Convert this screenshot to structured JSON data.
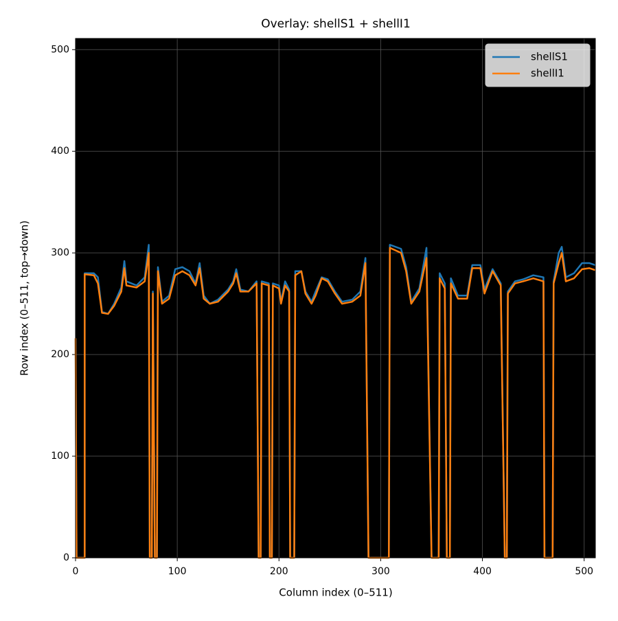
{
  "chart_data": {
    "type": "line",
    "title": "Overlay: shellS1 + shellI1",
    "x_label": "Column index (0–511)",
    "y_label": "Row index (0–511, top→down)",
    "x": [
      0,
      1,
      9,
      9,
      18,
      22,
      26,
      32,
      38,
      45,
      48,
      50,
      60,
      68,
      72,
      73,
      75,
      76,
      78,
      80,
      81,
      85,
      92,
      98,
      105,
      112,
      118,
      122,
      126,
      132,
      140,
      150,
      155,
      158,
      162,
      170,
      178,
      180,
      182,
      183,
      190,
      191,
      193,
      194,
      200,
      202,
      206,
      210,
      211,
      215,
      216,
      222,
      226,
      232,
      236,
      242,
      248,
      255,
      262,
      272,
      280,
      285,
      288,
      308,
      309,
      320,
      325,
      330,
      338,
      345,
      350,
      357,
      358,
      363,
      365,
      368,
      369,
      376,
      385,
      390,
      398,
      402,
      410,
      418,
      422,
      424,
      425,
      432,
      440,
      450,
      460,
      461,
      469,
      470,
      475,
      478,
      482,
      490,
      498,
      505,
      511
    ],
    "series": [
      {
        "name": "shellS1",
        "color": "#1f77b4",
        "values": [
          216,
          0,
          0,
          280,
          280,
          276,
          242,
          240,
          250,
          266,
          292,
          272,
          268,
          276,
          308,
          0,
          0,
          262,
          0,
          0,
          286,
          252,
          258,
          284,
          286,
          282,
          270,
          290,
          258,
          250,
          254,
          264,
          272,
          284,
          264,
          262,
          272,
          0,
          0,
          272,
          270,
          0,
          0,
          270,
          268,
          252,
          272,
          264,
          0,
          0,
          282,
          282,
          262,
          252,
          262,
          276,
          274,
          262,
          252,
          254,
          262,
          295,
          0,
          0,
          308,
          304,
          286,
          252,
          265,
          305,
          0,
          0,
          280,
          270,
          0,
          0,
          275,
          258,
          258,
          288,
          288,
          264,
          284,
          270,
          0,
          0,
          262,
          272,
          274,
          278,
          276,
          0,
          0,
          272,
          300,
          306,
          276,
          280,
          290,
          290,
          288
        ]
      },
      {
        "name": "shellI1",
        "color": "#ff7f0e",
        "values": [
          216,
          0,
          0,
          279,
          278,
          270,
          241,
          240,
          248,
          262,
          285,
          268,
          266,
          272,
          300,
          0,
          0,
          260,
          0,
          0,
          282,
          250,
          255,
          278,
          282,
          278,
          268,
          285,
          255,
          250,
          252,
          262,
          270,
          280,
          262,
          262,
          270,
          0,
          0,
          270,
          268,
          0,
          0,
          268,
          265,
          250,
          268,
          262,
          0,
          0,
          278,
          282,
          260,
          250,
          258,
          275,
          272,
          260,
          250,
          252,
          258,
          290,
          0,
          0,
          305,
          300,
          282,
          250,
          262,
          295,
          0,
          0,
          275,
          265,
          0,
          0,
          270,
          255,
          255,
          285,
          285,
          260,
          282,
          268,
          0,
          0,
          260,
          270,
          272,
          275,
          272,
          0,
          0,
          270,
          290,
          300,
          272,
          275,
          284,
          285,
          283
        ]
      }
    ],
    "xlim": [
      0,
      511
    ],
    "ylim": [
      0,
      511
    ],
    "xticks": [
      0,
      100,
      200,
      300,
      400,
      500
    ],
    "yticks": [
      0,
      100,
      200,
      300,
      400,
      500
    ],
    "grid": true,
    "legend": "upper right"
  }
}
